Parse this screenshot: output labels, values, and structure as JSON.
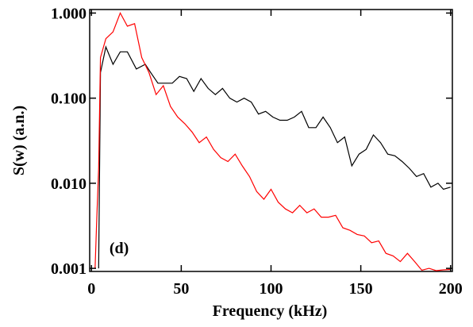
{
  "chart_data": {
    "type": "line",
    "x_label": "Frequency (kHz)",
    "y_label": "S(w) (a.n.)",
    "annotation": "(d)",
    "log_y": true,
    "xlim": [
      -1,
      201
    ],
    "xticks": [
      0,
      50,
      100,
      150,
      200
    ],
    "ylim": [
      0.00092,
      1.1
    ],
    "yticks": [
      {
        "value": 0.001,
        "label": "0.001"
      },
      {
        "value": 0.01,
        "label": "0.010"
      },
      {
        "value": 0.1,
        "label": "0.100"
      },
      {
        "value": 1,
        "label": "1.000"
      }
    ],
    "annotation_x": 10,
    "annotation_y": 0.0015,
    "series": [
      {
        "color": "#000000",
        "x": [
          4,
          5,
          8,
          12,
          16,
          20,
          25,
          30,
          33,
          37,
          41,
          45,
          49,
          53,
          57,
          61,
          65,
          69,
          73,
          77,
          81,
          85,
          89,
          93,
          97,
          101,
          105,
          109,
          113,
          117,
          121,
          125,
          129,
          133,
          137,
          141,
          145,
          149,
          153,
          157,
          161,
          165,
          169,
          173,
          177,
          181,
          185,
          189,
          193,
          196,
          200
        ],
        "values": [
          0.001,
          0.2,
          0.4,
          0.25,
          0.35,
          0.35,
          0.22,
          0.25,
          0.2,
          0.15,
          0.15,
          0.15,
          0.18,
          0.17,
          0.12,
          0.17,
          0.13,
          0.11,
          0.13,
          0.1,
          0.09,
          0.1,
          0.09,
          0.065,
          0.07,
          0.06,
          0.055,
          0.055,
          0.06,
          0.07,
          0.045,
          0.045,
          0.06,
          0.045,
          0.03,
          0.035,
          0.016,
          0.022,
          0.025,
          0.037,
          0.03,
          0.022,
          0.021,
          0.018,
          0.015,
          0.012,
          0.013,
          0.009,
          0.01,
          0.0085,
          0.009
        ]
      },
      {
        "color": "#ff0000",
        "x": [
          2,
          3,
          4,
          5,
          8,
          12,
          16,
          20,
          24,
          28,
          32,
          36,
          40,
          44,
          48,
          52,
          56,
          60,
          64,
          68,
          72,
          76,
          80,
          84,
          88,
          92,
          96,
          100,
          104,
          108,
          112,
          116,
          120,
          124,
          128,
          132,
          136,
          140,
          144,
          148,
          152,
          156,
          160,
          164,
          168,
          172,
          176,
          180,
          184,
          188,
          192,
          196,
          200
        ],
        "values": [
          0.001,
          0.004,
          0.015,
          0.3,
          0.5,
          0.6,
          1.0,
          0.7,
          0.75,
          0.3,
          0.2,
          0.11,
          0.14,
          0.08,
          0.06,
          0.05,
          0.04,
          0.03,
          0.035,
          0.025,
          0.02,
          0.018,
          0.022,
          0.016,
          0.012,
          0.008,
          0.0065,
          0.0085,
          0.006,
          0.005,
          0.0045,
          0.0055,
          0.0045,
          0.005,
          0.004,
          0.004,
          0.0042,
          0.003,
          0.0028,
          0.0025,
          0.0024,
          0.002,
          0.0021,
          0.0015,
          0.0014,
          0.0012,
          0.0015,
          0.0012,
          0.00095,
          0.001,
          0.00094,
          0.00096,
          0.00097
        ]
      }
    ]
  }
}
